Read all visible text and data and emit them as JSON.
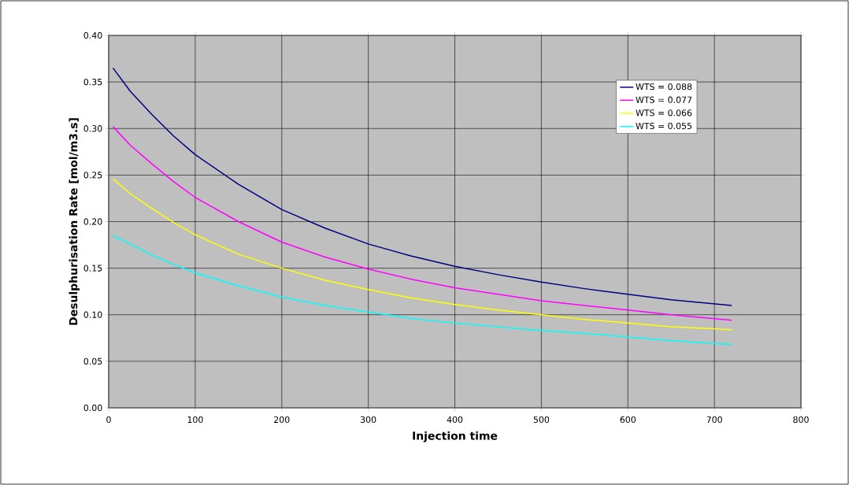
{
  "chart_data": {
    "type": "line",
    "xlabel": "Injection time",
    "ylabel": "Desulphurisation Rate [mol/m3.s]",
    "xlim": [
      0,
      800
    ],
    "ylim": [
      0,
      0.4
    ],
    "xticks": [
      0,
      100,
      200,
      300,
      400,
      500,
      600,
      700,
      800
    ],
    "yticks": [
      {
        "value": 0,
        "label": "0.00"
      },
      {
        "value": 0.05,
        "label": "0.05"
      },
      {
        "value": 0.1,
        "label": "0.10"
      },
      {
        "value": 0.15,
        "label": "0.15"
      },
      {
        "value": 0.2,
        "label": "0.20"
      },
      {
        "value": 0.25,
        "label": "0.25"
      },
      {
        "value": 0.3,
        "label": "0.30"
      },
      {
        "value": 0.35,
        "label": "0.35"
      },
      {
        "value": 0.4,
        "label": "0.40"
      }
    ],
    "grid": true,
    "legend": "top right",
    "marker": "none",
    "line_style": "solid",
    "x": [
      5,
      25,
      50,
      75,
      100,
      150,
      200,
      250,
      300,
      350,
      400,
      450,
      500,
      550,
      600,
      650,
      720
    ],
    "series": [
      {
        "name": "WTS = 0.088",
        "color": "#000080",
        "values": [
          0.365,
          0.34,
          0.315,
          0.292,
          0.272,
          0.24,
          0.213,
          0.193,
          0.176,
          0.163,
          0.152,
          0.143,
          0.135,
          0.128,
          0.122,
          0.116,
          0.11
        ]
      },
      {
        "name": "WTS = 0.077",
        "color": "#ff00ff",
        "values": [
          0.302,
          0.282,
          0.262,
          0.243,
          0.226,
          0.2,
          0.178,
          0.162,
          0.149,
          0.138,
          0.129,
          0.122,
          0.115,
          0.11,
          0.105,
          0.1,
          0.094
        ]
      },
      {
        "name": "WTS = 0.066",
        "color": "#ffff00",
        "values": [
          0.246,
          0.23,
          0.214,
          0.199,
          0.186,
          0.165,
          0.15,
          0.137,
          0.127,
          0.118,
          0.111,
          0.105,
          0.1,
          0.095,
          0.091,
          0.087,
          0.084
        ]
      },
      {
        "name": "WTS = 0.055",
        "color": "#00ffff",
        "values": [
          0.185,
          0.176,
          0.164,
          0.154,
          0.145,
          0.131,
          0.119,
          0.11,
          0.103,
          0.096,
          0.091,
          0.087,
          0.083,
          0.08,
          0.076,
          0.072,
          0.068
        ]
      }
    ]
  }
}
